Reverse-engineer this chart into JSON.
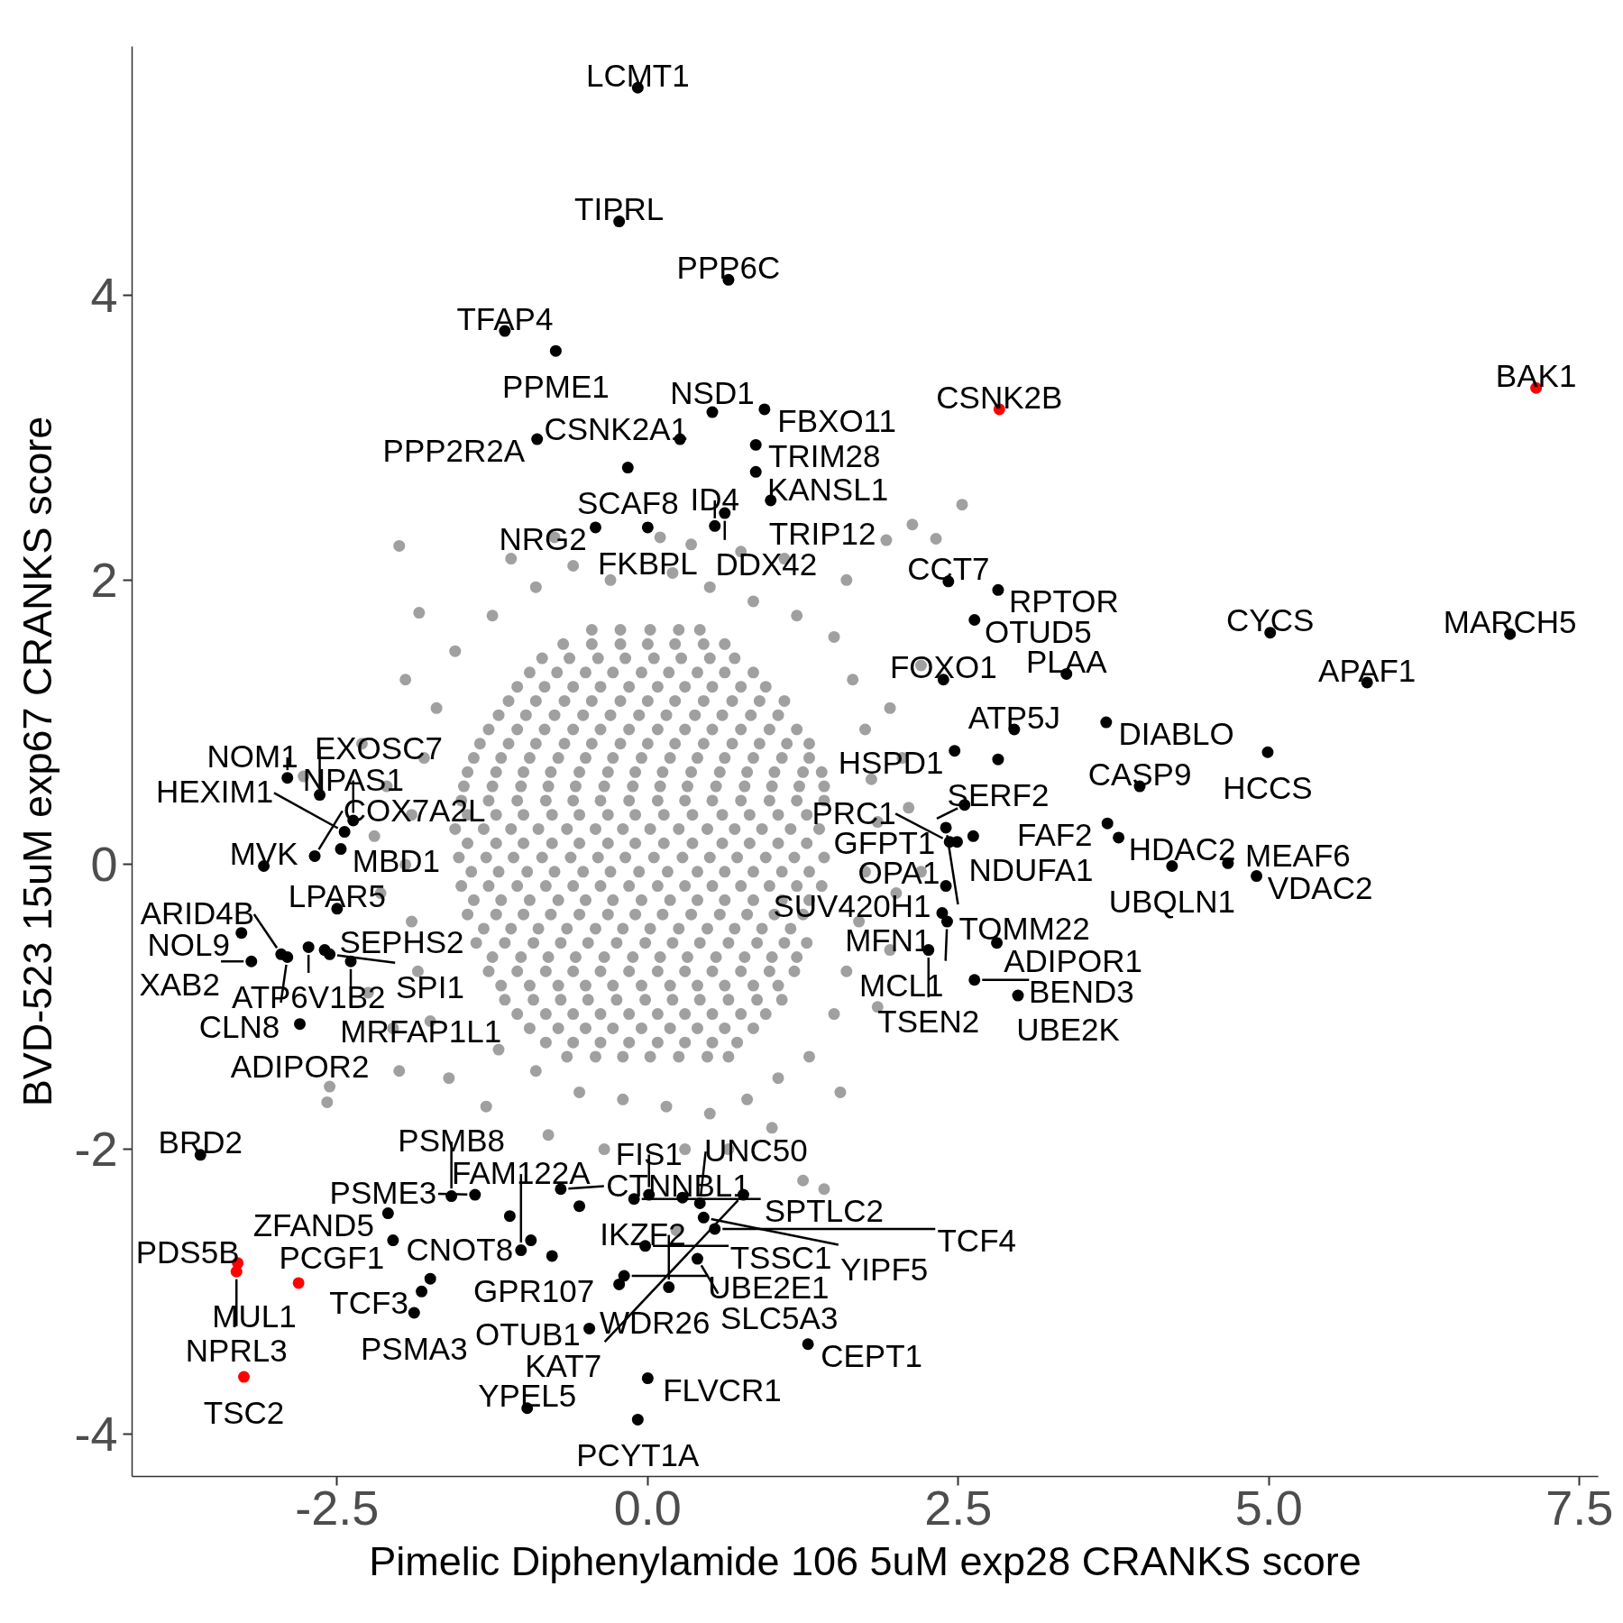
{
  "chart_data": {
    "type": "scatter",
    "xlabel": "Pimelic Diphenylamide 106 5uM exp28 CRANKS score",
    "ylabel": "BVD-523 15uM exp67 CRANKS score",
    "xlim": [
      -4.15,
      7.65
    ],
    "ylim": [
      -4.3,
      5.75
    ],
    "xticks": [
      -2.5,
      {
        "value": 0,
        "label": "0.0"
      },
      2.5,
      {
        "value": 5,
        "label": "5.0"
      },
      7.5
    ],
    "yticks": [
      -4,
      -2,
      0,
      2,
      4
    ],
    "grid": false,
    "marker": "circle",
    "series": [
      {
        "color": "#a0a0a0",
        "x": [
          -0.45,
          -0.22,
          0.02,
          0.25,
          0.42,
          -0.85,
          -0.63,
          -0.4,
          -0.18,
          0.05,
          0.27,
          0.5,
          0.7,
          -1.05,
          -0.83,
          -0.6,
          -0.38,
          -0.15,
          0.08,
          0.3,
          0.52,
          0.75,
          0.95,
          -1.2,
          -0.98,
          -0.75,
          -0.52,
          -0.3,
          -0.07,
          0.15,
          0.38,
          0.6,
          0.83,
          1.05,
          -1.35,
          -1.12,
          -0.9,
          -0.67,
          -0.45,
          -0.22,
          0,
          0.22,
          0.45,
          0.68,
          0.9,
          1.12,
          1.3,
          -1.45,
          -1.22,
          -1,
          -0.78,
          -0.55,
          -0.32,
          -0.1,
          0.12,
          0.35,
          0.58,
          0.8,
          1.02,
          1.25,
          1.4,
          -1.5,
          -1.28,
          -1.05,
          -0.82,
          -0.6,
          -0.38,
          -0.15,
          0.08,
          0.3,
          0.52,
          0.75,
          0.98,
          1.2,
          1.42,
          -1.55,
          -1.32,
          -1.1,
          -0.88,
          -0.65,
          -0.42,
          -0.2,
          0.02,
          0.25,
          0.48,
          0.7,
          0.92,
          1.15,
          1.38,
          -1.52,
          -1.3,
          -1.08,
          -0.85,
          -0.62,
          -0.4,
          -0.18,
          0.05,
          0.28,
          0.5,
          0.72,
          0.95,
          1.18,
          1.42,
          -1.5,
          -1.28,
          -1.05,
          -0.82,
          -0.6,
          -0.38,
          -0.15,
          0.08,
          0.3,
          0.52,
          0.75,
          0.98,
          1.2,
          1.4,
          -1.45,
          -1.22,
          -1,
          -0.78,
          -0.55,
          -0.32,
          -0.1,
          0.12,
          0.35,
          0.58,
          0.8,
          1.02,
          1.25,
          -1.38,
          -1.15,
          -0.92,
          -0.7,
          -0.48,
          -0.25,
          -0.02,
          0.2,
          0.42,
          0.65,
          0.88,
          1.1,
          1.28,
          -1.28,
          -1.05,
          -0.82,
          -0.6,
          -0.38,
          -0.15,
          0.08,
          0.3,
          0.52,
          0.75,
          0.98,
          1.18,
          -1.15,
          -0.92,
          -0.7,
          -0.48,
          -0.25,
          -0.02,
          0.2,
          0.42,
          0.65,
          0.88,
          1.08,
          -0.95,
          -0.72,
          -0.5,
          -0.28,
          -0.05,
          0.18,
          0.4,
          0.62,
          0.85,
          -0.65,
          -0.42,
          -0.2,
          0.02,
          0.25,
          0.48,
          0.65,
          -0.68,
          -0.45,
          -0.22,
          0.0,
          0.22,
          0.45,
          0.62,
          -0.95,
          -0.73,
          -0.5,
          -0.28,
          -0.05,
          0.17,
          0.4,
          0.62,
          0.85,
          -1.12,
          -0.9,
          -0.67,
          -0.45,
          -0.22,
          0.0,
          0.22,
          0.45,
          0.68,
          0.9,
          1.1,
          -1.28,
          -1.05,
          -0.83,
          -0.6,
          -0.38,
          -0.15,
          0.08,
          0.3,
          0.52,
          0.75,
          0.98,
          1.2,
          -1.4,
          -1.18,
          -0.95,
          -0.72,
          -0.5,
          -0.28,
          -0.05,
          0.18,
          0.4,
          0.62,
          0.85,
          1.08,
          1.3,
          -1.48,
          -1.25,
          -1.02,
          -0.8,
          -0.58,
          -0.35,
          -0.12,
          0.1,
          0.32,
          0.55,
          0.78,
          1.0,
          1.22,
          1.42,
          -1.45,
          -1.22,
          -1.0,
          -0.77,
          -0.55,
          -0.32,
          -0.1,
          0.13,
          0.36,
          0.6,
          0.82,
          1.05,
          1.28,
          -1.45,
          -1.22,
          -1.0,
          -0.77,
          -0.55,
          -0.32,
          -0.1,
          0.13,
          0.36,
          0.6,
          0.82,
          1.05,
          1.28,
          -1.42,
          -1.2,
          -0.97,
          -0.75,
          -0.52,
          -0.3,
          -0.07,
          0.16,
          0.4,
          0.62,
          0.85,
          1.08,
          1.3,
          -1.4,
          -1.18,
          -0.95,
          -0.72,
          -0.5,
          -0.28,
          -0.05,
          0.18,
          0.4,
          0.62,
          0.85,
          1.08,
          1.3,
          -1.32,
          -1.1,
          -0.88,
          -0.65,
          -0.42,
          -0.2,
          0.02,
          0.25,
          0.48,
          0.7,
          0.92,
          1.15,
          -1.25,
          -1.02,
          -0.8,
          -0.58,
          -0.35,
          -0.12,
          0.1,
          0.32,
          0.55,
          0.78,
          1.0,
          1.2,
          -1.18,
          -0.95,
          -0.72,
          -0.5,
          -0.28,
          -0.05,
          0.18,
          0.4,
          0.62,
          0.85,
          1.05,
          -1.05,
          -0.82,
          -0.6,
          -0.38,
          -0.15,
          0.08,
          0.3,
          0.52,
          0.75,
          0.95,
          -0.82,
          -0.6,
          -0.38,
          -0.15,
          0.08,
          0.3,
          0.52,
          0.72,
          -0.9,
          -0.6,
          -0.3,
          0.2,
          0.5,
          0.85,
          1.2,
          1.5,
          -1.25,
          -1.55,
          -0.75,
          0.35,
          0.75,
          1.1,
          1.6,
          2.13,
          1.92,
          2.32,
          2.53,
          -2.0,
          -1.84,
          -1.1,
          0.1,
          1.65,
          1.75,
          1.8,
          1.85,
          1.75,
          1.7,
          1.6,
          1.5,
          1.95,
          2.05,
          2.1,
          2.0,
          1.95,
          2.2,
          2.2,
          1.85,
          1.3,
          1.05,
          0.8,
          0.5,
          0.15,
          -0.2,
          -0.55,
          -0.9,
          -1.2,
          0.3,
          0.65,
          1.0,
          -0.35,
          -0.8,
          1.25,
          1.42,
          0.23,
          -1.3,
          -1.6,
          -2.0,
          -2.56,
          -2.58,
          1.55,
          -1.75,
          -1.85,
          -1.9,
          -1.95,
          -1.9,
          -1.8,
          -1.7,
          -2.15,
          -2.2,
          -2.1,
          -2.25,
          -2.05,
          -2.77,
          -2.3,
          -1.95
        ],
        "values": [
          1.65,
          1.65,
          1.65,
          1.65,
          1.65,
          1.45,
          1.45,
          1.45,
          1.45,
          1.45,
          1.45,
          1.45,
          1.45,
          1.25,
          1.25,
          1.25,
          1.25,
          1.25,
          1.25,
          1.25,
          1.25,
          1.25,
          1.25,
          1.05,
          1.05,
          1.05,
          1.05,
          1.05,
          1.05,
          1.05,
          1.05,
          1.05,
          1.05,
          1.05,
          0.85,
          0.85,
          0.85,
          0.85,
          0.85,
          0.85,
          0.85,
          0.85,
          0.85,
          0.85,
          0.85,
          0.85,
          0.85,
          0.65,
          0.65,
          0.65,
          0.65,
          0.65,
          0.65,
          0.65,
          0.65,
          0.65,
          0.65,
          0.65,
          0.65,
          0.65,
          0.65,
          0.45,
          0.45,
          0.45,
          0.45,
          0.45,
          0.45,
          0.45,
          0.45,
          0.45,
          0.45,
          0.45,
          0.45,
          0.45,
          0.45,
          0.25,
          0.25,
          0.25,
          0.25,
          0.25,
          0.25,
          0.25,
          0.25,
          0.25,
          0.25,
          0.25,
          0.25,
          0.25,
          0.25,
          0.05,
          0.05,
          0.05,
          0.05,
          0.05,
          0.05,
          0.05,
          0.05,
          0.05,
          0.05,
          0.05,
          0.05,
          0.05,
          0.05,
          -0.15,
          -0.15,
          -0.15,
          -0.15,
          -0.15,
          -0.15,
          -0.15,
          -0.15,
          -0.15,
          -0.15,
          -0.15,
          -0.15,
          -0.15,
          -0.15,
          -0.35,
          -0.35,
          -0.35,
          -0.35,
          -0.35,
          -0.35,
          -0.35,
          -0.35,
          -0.35,
          -0.35,
          -0.35,
          -0.35,
          -0.35,
          -0.55,
          -0.55,
          -0.55,
          -0.55,
          -0.55,
          -0.55,
          -0.55,
          -0.55,
          -0.55,
          -0.55,
          -0.55,
          -0.55,
          -0.55,
          -0.75,
          -0.75,
          -0.75,
          -0.75,
          -0.75,
          -0.75,
          -0.75,
          -0.75,
          -0.75,
          -0.75,
          -0.75,
          -0.75,
          -0.95,
          -0.95,
          -0.95,
          -0.95,
          -0.95,
          -0.95,
          -0.95,
          -0.95,
          -0.95,
          -0.95,
          -0.95,
          -1.15,
          -1.15,
          -1.15,
          -1.15,
          -1.15,
          -1.15,
          -1.15,
          -1.15,
          -1.15,
          -1.35,
          -1.35,
          -1.35,
          -1.35,
          -1.35,
          -1.35,
          -1.35,
          1.55,
          1.55,
          1.55,
          1.55,
          1.55,
          1.55,
          1.55,
          1.35,
          1.35,
          1.35,
          1.35,
          1.35,
          1.35,
          1.35,
          1.35,
          1.35,
          1.15,
          1.15,
          1.15,
          1.15,
          1.15,
          1.15,
          1.15,
          1.15,
          1.15,
          1.15,
          1.15,
          0.95,
          0.95,
          0.95,
          0.95,
          0.95,
          0.95,
          0.95,
          0.95,
          0.95,
          0.95,
          0.95,
          0.95,
          0.75,
          0.75,
          0.75,
          0.75,
          0.75,
          0.75,
          0.75,
          0.75,
          0.75,
          0.75,
          0.75,
          0.75,
          0.75,
          0.55,
          0.55,
          0.55,
          0.55,
          0.55,
          0.55,
          0.55,
          0.55,
          0.55,
          0.55,
          0.55,
          0.55,
          0.55,
          0.55,
          0.35,
          0.35,
          0.35,
          0.35,
          0.35,
          0.35,
          0.35,
          0.35,
          0.35,
          0.35,
          0.35,
          0.35,
          0.35,
          0.15,
          0.15,
          0.15,
          0.15,
          0.15,
          0.15,
          0.15,
          0.15,
          0.15,
          0.15,
          0.15,
          0.15,
          0.15,
          -0.05,
          -0.05,
          -0.05,
          -0.05,
          -0.05,
          -0.05,
          -0.05,
          -0.05,
          -0.05,
          -0.05,
          -0.05,
          -0.05,
          -0.05,
          -0.25,
          -0.25,
          -0.25,
          -0.25,
          -0.25,
          -0.25,
          -0.25,
          -0.25,
          -0.25,
          -0.25,
          -0.25,
          -0.25,
          -0.25,
          -0.45,
          -0.45,
          -0.45,
          -0.45,
          -0.45,
          -0.45,
          -0.45,
          -0.45,
          -0.45,
          -0.45,
          -0.45,
          -0.45,
          -0.65,
          -0.65,
          -0.65,
          -0.65,
          -0.65,
          -0.65,
          -0.65,
          -0.65,
          -0.65,
          -0.65,
          -0.65,
          -0.65,
          -0.85,
          -0.85,
          -0.85,
          -0.85,
          -0.85,
          -0.85,
          -0.85,
          -0.85,
          -0.85,
          -0.85,
          -0.85,
          -1.05,
          -1.05,
          -1.05,
          -1.05,
          -1.05,
          -1.05,
          -1.05,
          -1.05,
          -1.05,
          -1.05,
          -1.25,
          -1.25,
          -1.25,
          -1.25,
          -1.25,
          -1.25,
          -1.25,
          -1.25,
          1.95,
          2.1,
          2.0,
          2.05,
          1.95,
          1.85,
          1.75,
          1.6,
          1.75,
          1.5,
          2.3,
          2.25,
          2.2,
          2.15,
          2.0,
          2.39,
          2.28,
          2.29,
          2.53,
          2.24,
          1.77,
          2.15,
          2.3,
          1.3,
          0.95,
          0.6,
          0.3,
          -0.05,
          -0.4,
          -0.75,
          -1.05,
          1.1,
          0.75,
          0.4,
          -0.2,
          -0.6,
          1.4,
          -0.05,
          -1.0,
          -1.35,
          -1.5,
          -1.65,
          -1.75,
          -1.7,
          -1.65,
          -1.6,
          -1.45,
          -1.3,
          -2.0,
          -2.0,
          -1.85,
          -2.0,
          -1.9,
          -2.22,
          -2.28,
          -2.57,
          -1.7,
          -1.5,
          -1.45,
          -1.56,
          -1.67,
          -1.6,
          -1.1,
          -0.75,
          -0.4,
          0.0,
          0.35,
          0.75,
          1.1,
          -0.2,
          0.2,
          0.55,
          -0.9,
          -1.15,
          0.62,
          0.85,
          1.3
        ]
      },
      {
        "color": "#000000",
        "x": [
          -0.08,
          -0.23,
          0.65,
          -1.15,
          -0.74,
          0.52,
          0.94,
          -0.89,
          0.26,
          0.87,
          -0.16,
          0.87,
          0.99,
          0.62,
          0.54,
          -0.42,
          0.0,
          2.42,
          2.82,
          2.63,
          2.38,
          3.37,
          5.01,
          6.94,
          5.79,
          2.95,
          3.69,
          4.99,
          2.47,
          2.82,
          3.96,
          2.55,
          2.4,
          2.62,
          2.43,
          2.49,
          2.4,
          3.7,
          3.79,
          4.22,
          4.67,
          4.9,
          2.37,
          2.41,
          2.81,
          2.26,
          2.63,
          2.98,
          -2.9,
          -2.64,
          -2.37,
          -2.44,
          -2.47,
          -2.68,
          -3.09,
          -2.5,
          -3.27,
          -3.19,
          -2.95,
          -2.9,
          -2.73,
          -2.6,
          -2.56,
          -2.39,
          -2.8,
          -3.6,
          -2.09,
          -2.05,
          -1.75,
          -1.82,
          -1.88,
          -1.58,
          -1.39,
          -1.11,
          -1.02,
          -0.94,
          -0.77,
          -0.7,
          -0.55,
          -0.11,
          0.01,
          0.28,
          0.42,
          0.77,
          0.45,
          0.54,
          0.4,
          -0.02,
          -0.19,
          -0.23,
          0.17,
          -0.47,
          0.0,
          1.29,
          -0.97,
          -0.08
        ],
        "values": [
          5.46,
          4.52,
          4.11,
          3.75,
          3.61,
          3.18,
          3.2,
          2.99,
          2.99,
          2.95,
          2.79,
          2.76,
          2.56,
          2.47,
          2.38,
          2.37,
          2.37,
          1.99,
          1.93,
          1.72,
          1.3,
          1.34,
          1.63,
          1.62,
          1.28,
          0.95,
          1.0,
          0.79,
          0.8,
          0.74,
          0.55,
          0.42,
          0.26,
          0.2,
          0.16,
          0.16,
          -0.15,
          0.29,
          0.19,
          -0.01,
          0.01,
          -0.08,
          -0.34,
          -0.4,
          -0.55,
          -0.6,
          -0.81,
          -0.92,
          0.61,
          0.49,
          0.31,
          0.23,
          0.11,
          0.06,
          -0.01,
          -0.31,
          -0.48,
          -0.68,
          -0.63,
          -0.65,
          -0.58,
          -0.6,
          -0.63,
          -0.68,
          -1.12,
          -2.04,
          -2.45,
          -2.64,
          -2.91,
          -3.0,
          -3.15,
          -2.33,
          -2.32,
          -2.47,
          -2.71,
          -2.64,
          -2.75,
          -2.28,
          -2.4,
          -2.35,
          -2.32,
          -2.34,
          -2.38,
          -2.32,
          -2.48,
          -2.56,
          -2.77,
          -2.68,
          -2.89,
          -2.95,
          -2.97,
          -3.26,
          -3.61,
          -3.37,
          -3.82,
          -3.9
        ],
        "value_labels": [
          "LCMT1",
          "TIPRL",
          "PPP6C",
          "TFAP4",
          "PPME1",
          "NSD1",
          "FBXO11",
          "PPP2R2A",
          "CSNK2A1",
          "TRIM28",
          "SCAF8",
          "KANSL1",
          "TRIP12",
          "DDX42",
          "ID4",
          "NRG2",
          "FKBPL",
          "CCT7",
          "RPTOR",
          "OTUD5",
          "FOXO1",
          "PLAA",
          "CYCS",
          "MARCH5",
          "APAF1",
          "ATP5J",
          "DIABLO",
          "HCCS",
          "HSPD1",
          "SERF2",
          "CASP9",
          "GFPT1",
          "TOMM22",
          "NDUFA1",
          "PRC1",
          "OPA1",
          "SUV420H1",
          "FAF2",
          "HDAC2",
          "UBQLN1",
          "MEAF6",
          "VDAC2",
          "MFN1",
          "MCL1",
          "ADIPOR1",
          "TSEN2",
          "BEND3",
          "UBE2K",
          "NOM1",
          "EXOSC7",
          "NPAS1",
          "HEXIM1",
          "MBD1",
          "COX7A2L",
          "MVK",
          "LPAR5",
          "NOL9",
          "XAB2",
          "ARID4B",
          "CLN8",
          "ATP6V1B2",
          "SEPHS2",
          "SPI1",
          "MRFAP1L1",
          "ADIPOR2",
          "BRD2",
          "ZFAND5",
          "PCGF1",
          null,
          "TCF3",
          "PSMA3",
          "PSMB8",
          "PSME3",
          "CNOT8",
          "FAM122A",
          null,
          "GPR107",
          "CTNNBL1",
          null,
          "SPTLC2",
          "FIS1",
          null,
          "UNC50",
          "KAT7",
          "YIPF5",
          "TCF4",
          "SLC5A3",
          "TSSC1",
          "UBE2E1",
          "WDR26",
          "IKZF2",
          "OTUB1",
          "FLVCR1",
          "CEPT1",
          "YPEL5",
          "PCYT1A"
        ]
      },
      {
        "color": "#ff0000",
        "x": [
          2.83,
          7.15,
          -3.3,
          -3.31,
          -2.81,
          -3.25
        ],
        "values": [
          3.2,
          3.35,
          -2.8,
          -2.86,
          -2.94,
          -3.6
        ],
        "value_labels": [
          "CSNK2B",
          "BAK1",
          "PDS5B",
          "NPRL3",
          "MUL1",
          "TSC2"
        ]
      }
    ]
  }
}
